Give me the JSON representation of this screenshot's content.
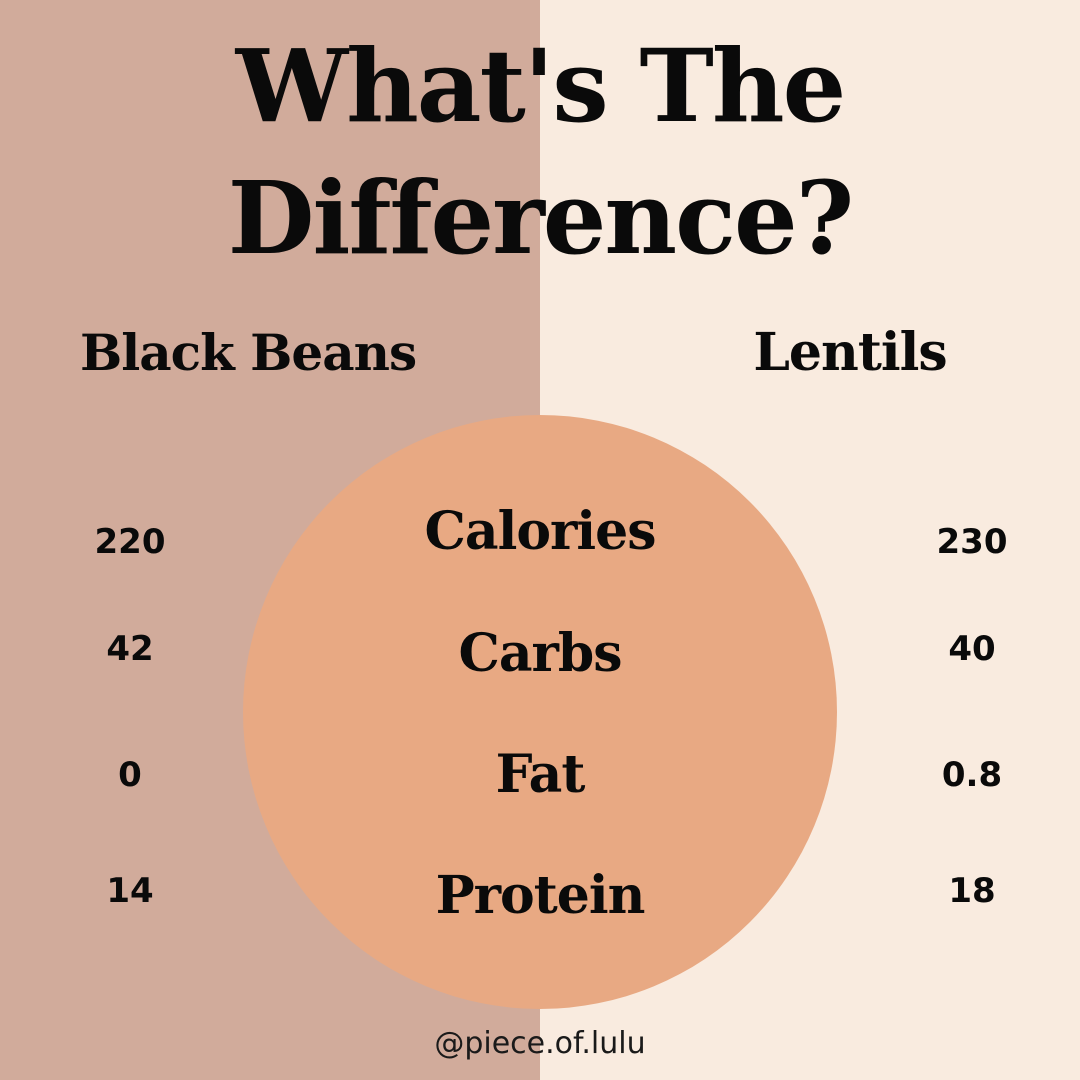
{
  "colors": {
    "left_background": "#d1ab9b",
    "right_background": "#f9ebdf",
    "circle": "#e8a983",
    "text": "#0a0a0a"
  },
  "title": {
    "line1": "What's The",
    "line2": "Difference?"
  },
  "columns": {
    "left_label": "Black Beans",
    "right_label": "Lentils"
  },
  "rows": [
    {
      "metric": "Calories",
      "left": "220",
      "right": "230"
    },
    {
      "metric": "Carbs",
      "left": "42",
      "right": "40"
    },
    {
      "metric": "Fat",
      "left": "0",
      "right": "0.8"
    },
    {
      "metric": "Protein",
      "left": "14",
      "right": "18"
    }
  ],
  "credit": "@piece.of.lulu"
}
